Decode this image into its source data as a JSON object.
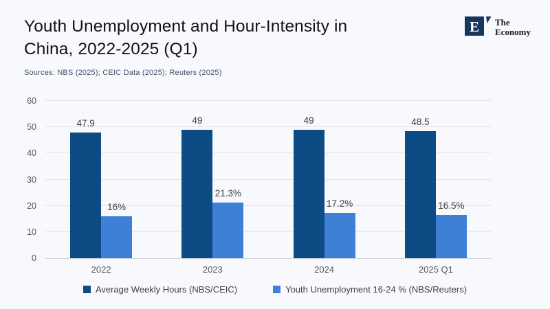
{
  "header": {
    "title": "Youth Unemployment and Hour-Intensity in China, 2022-2025 (Q1)",
    "title_lines": [
      "Youth Unemployment and Hour-Intensity in",
      "China, 2022-2025 (Q1)"
    ],
    "sources": "Sources: NBS (2025); CEIC Data (2025); Reuters (2025)",
    "brand": {
      "letter": "E",
      "line1": "The",
      "line2": "Economy"
    }
  },
  "colors": {
    "background": "#f8f9fd",
    "series_dark": "#0d4b85",
    "series_light": "#3d80d6",
    "logo_navy": "#17365c",
    "gridline": "#e3e4e8",
    "axis_line": "#d1d3d8",
    "tick_text": "#595959",
    "value_text": "#3c3c3c",
    "sources_text": "#44546a",
    "title_text": "#121212"
  },
  "chart_data": {
    "type": "bar",
    "categories": [
      "2022",
      "2023",
      "2024",
      "2025 Q1"
    ],
    "series": [
      {
        "name": "Average Weekly Hours (NBS/CEIC)",
        "values": [
          47.9,
          49,
          49,
          48.5
        ],
        "labels": [
          "47.9",
          "49",
          "49",
          "48.5"
        ],
        "color": "#0d4b85"
      },
      {
        "name": "Youth Unemployment 16-24 % (NBS/Reuters)",
        "values": [
          16,
          21.3,
          17.2,
          16.5
        ],
        "labels": [
          "16%",
          "21.3%",
          "17.2%",
          "16.5%"
        ],
        "color": "#3d80d6"
      }
    ],
    "title": "Youth Unemployment and Hour-Intensity in China, 2022-2025 (Q1)",
    "xlabel": "",
    "ylabel": "",
    "ylim": [
      0,
      60
    ],
    "ytick_step": 10,
    "grid": true,
    "legend_position": "bottom"
  }
}
